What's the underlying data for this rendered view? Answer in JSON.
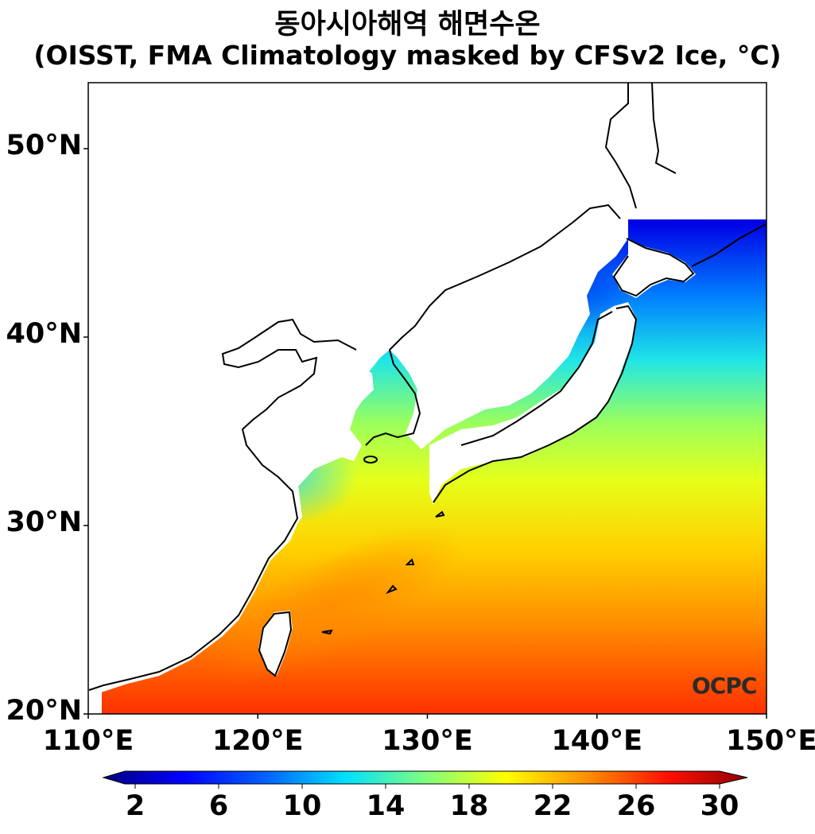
{
  "title": {
    "line1": "동아시아해역 해면수온",
    "line2": "(OISST, FMA Climatology masked by CFSv2 Ice, °C)"
  },
  "map": {
    "lon_range": [
      110,
      150
    ],
    "lat_range": [
      20,
      53.5
    ],
    "lat_ticks": [
      {
        "value": 50,
        "label": "50°N"
      },
      {
        "value": 40,
        "label": "40°N"
      },
      {
        "value": 30,
        "label": "30°N"
      },
      {
        "value": 20,
        "label": "20°N"
      }
    ],
    "lon_ticks": [
      {
        "value": 110,
        "label": "110°E"
      },
      {
        "value": 120,
        "label": "120°E"
      },
      {
        "value": 130,
        "label": "130°E"
      },
      {
        "value": 140,
        "label": "140°E"
      },
      {
        "value": 150,
        "label": "150°E"
      }
    ],
    "logo_text": "OCPC"
  },
  "colorbar": {
    "min": 2,
    "max": 30,
    "ticks": [
      "2",
      "6",
      "10",
      "14",
      "18",
      "22",
      "26",
      "30"
    ],
    "colors": [
      "#00007f",
      "#0000ff",
      "#007fff",
      "#00ffff",
      "#7fff7f",
      "#ffff00",
      "#ff7f00",
      "#ff0000",
      "#7f0000"
    ]
  }
}
